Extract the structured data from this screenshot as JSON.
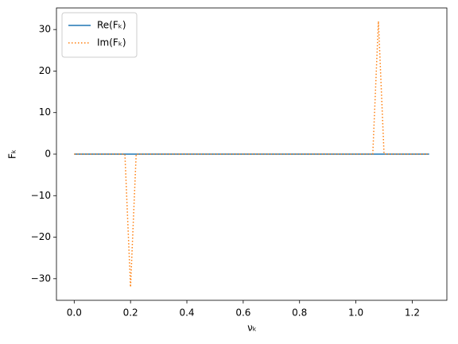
{
  "chart_data": {
    "type": "line",
    "xlabel": "νₖ",
    "ylabel": "Fₖ",
    "x": [
      0,
      0.02,
      0.04,
      0.06,
      0.08,
      0.1,
      0.12,
      0.14,
      0.16,
      0.18,
      0.2,
      0.22,
      0.24,
      0.26,
      0.28,
      0.3,
      0.32,
      0.34,
      0.36,
      0.38,
      0.4,
      0.42,
      0.44,
      0.46,
      0.48,
      0.5,
      0.52,
      0.54,
      0.56,
      0.58,
      0.6,
      0.62,
      0.64,
      0.66,
      0.68,
      0.7,
      0.72,
      0.74,
      0.76,
      0.78,
      0.8,
      0.82,
      0.84,
      0.86,
      0.88,
      0.9,
      0.92,
      0.94,
      0.96,
      0.98,
      1,
      1.02,
      1.04,
      1.06,
      1.08,
      1.1,
      1.12,
      1.14,
      1.16,
      1.18,
      1.2,
      1.22,
      1.24,
      1.26
    ],
    "series": [
      {
        "name": "Re(Fₖ)",
        "color": "#1f77b4",
        "style": "solid",
        "values": [
          0,
          0,
          0,
          0,
          0,
          0,
          0,
          0,
          0,
          0,
          0,
          0,
          0,
          0,
          0,
          0,
          0,
          0,
          0,
          0,
          0,
          0,
          0,
          0,
          0,
          0,
          0,
          0,
          0,
          0,
          0,
          0,
          0,
          0,
          0,
          0,
          0,
          0,
          0,
          0,
          0,
          0,
          0,
          0,
          0,
          0,
          0,
          0,
          0,
          0,
          0,
          0,
          0,
          0,
          0,
          0,
          0,
          0,
          0,
          0,
          0,
          0,
          0,
          0
        ]
      },
      {
        "name": "Im(Fₖ)",
        "color": "#ff7f0e",
        "style": "dotted",
        "values": [
          0,
          0,
          0,
          0,
          0,
          0,
          0,
          0,
          0,
          0,
          -32,
          0,
          0,
          0,
          0,
          0,
          0,
          0,
          0,
          0,
          0,
          0,
          0,
          0,
          0,
          0,
          0,
          0,
          0,
          0,
          0,
          0,
          0,
          0,
          0,
          0,
          0,
          0,
          0,
          0,
          0,
          0,
          0,
          0,
          0,
          0,
          0,
          0,
          0,
          0,
          0,
          0,
          0,
          0,
          32,
          0,
          0,
          0,
          0,
          0,
          0,
          0,
          0,
          0
        ]
      }
    ],
    "xlim": [
      -0.063,
      1.323
    ],
    "xticks": [
      {
        "value": 0,
        "label": "0.0"
      },
      0.2,
      0.4,
      0.6,
      0.8,
      {
        "value": 1,
        "label": "1.0"
      },
      1.2
    ],
    "ylim": [
      -35.2,
      35.2
    ],
    "yticks": [
      {
        "value": -30,
        "label": "−30"
      },
      {
        "value": -20,
        "label": "−20"
      },
      {
        "value": -10,
        "label": "−10"
      },
      0,
      10,
      20,
      30
    ],
    "legend": "upper left"
  }
}
